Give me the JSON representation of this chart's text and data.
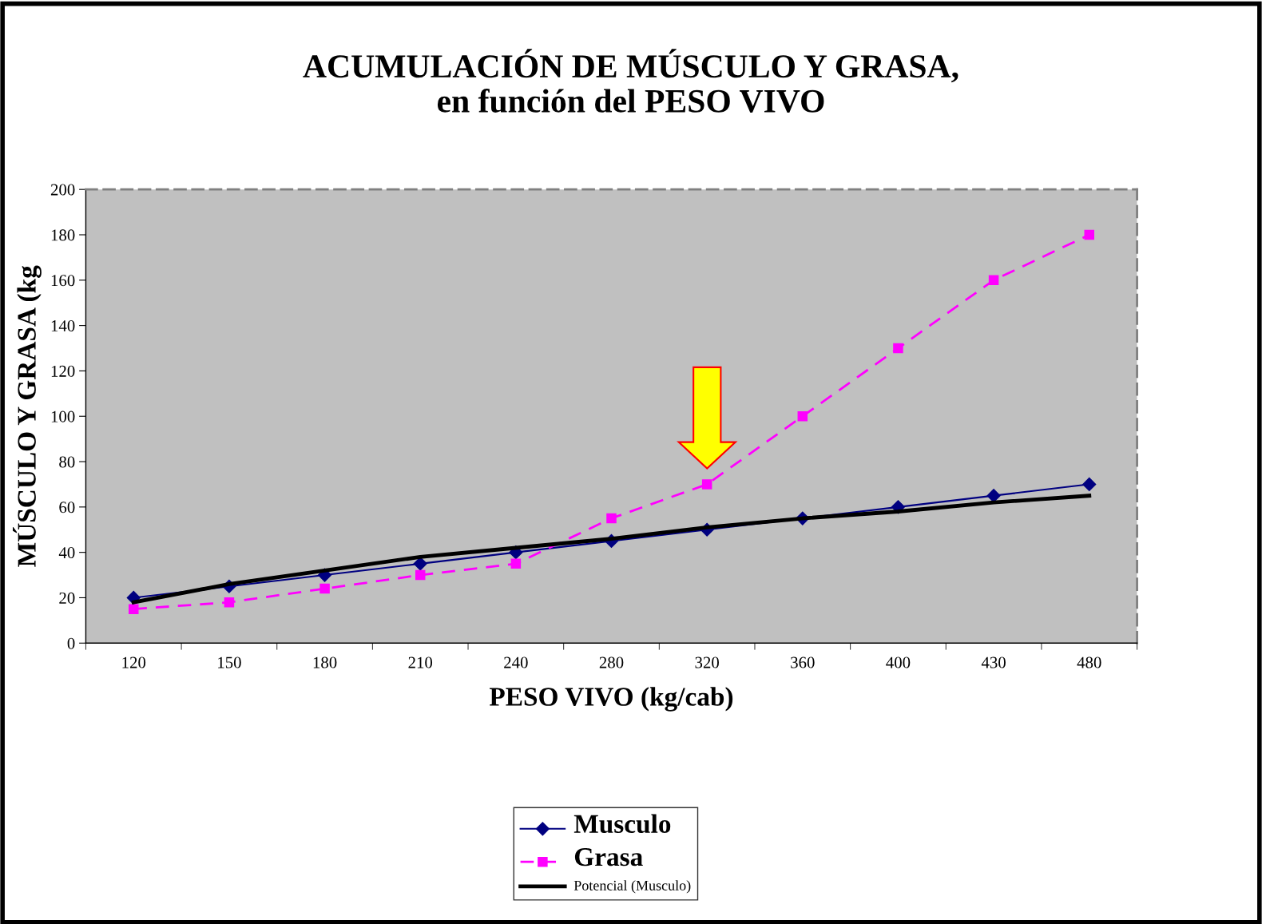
{
  "chart_data": {
    "type": "line",
    "title": "ACUMULACIÓN DE MÚSCULO Y GRASA,\nen función del PESO VIVO",
    "xlabel": "PESO VIVO (kg/cab)",
    "ylabel": "MÚSCULO Y GRASA (kg",
    "categories": [
      "120",
      "150",
      "180",
      "210",
      "240",
      "280",
      "320",
      "360",
      "400",
      "430",
      "480"
    ],
    "series": [
      {
        "name": "Musculo",
        "color": "#000080",
        "marker": "diamond",
        "line_style": "solid",
        "values": [
          20,
          25,
          30,
          35,
          40,
          45,
          50,
          55,
          60,
          65,
          70
        ]
      },
      {
        "name": "Grasa",
        "color": "#ff00ff",
        "marker": "square",
        "line_style": "dashed",
        "values": [
          15,
          18,
          24,
          30,
          35,
          55,
          70,
          100,
          130,
          160,
          180
        ]
      },
      {
        "name": "Potencial (Musculo)",
        "color": "#000000",
        "marker": "none",
        "line_style": "solid",
        "values": [
          18,
          26,
          32,
          38,
          42,
          46,
          51,
          55,
          58,
          62,
          65
        ]
      }
    ],
    "ylim": [
      0,
      200
    ],
    "yticks": [
      0,
      20,
      40,
      60,
      80,
      100,
      120,
      140,
      160,
      180,
      200
    ],
    "grid": false,
    "legend": "bottom"
  }
}
